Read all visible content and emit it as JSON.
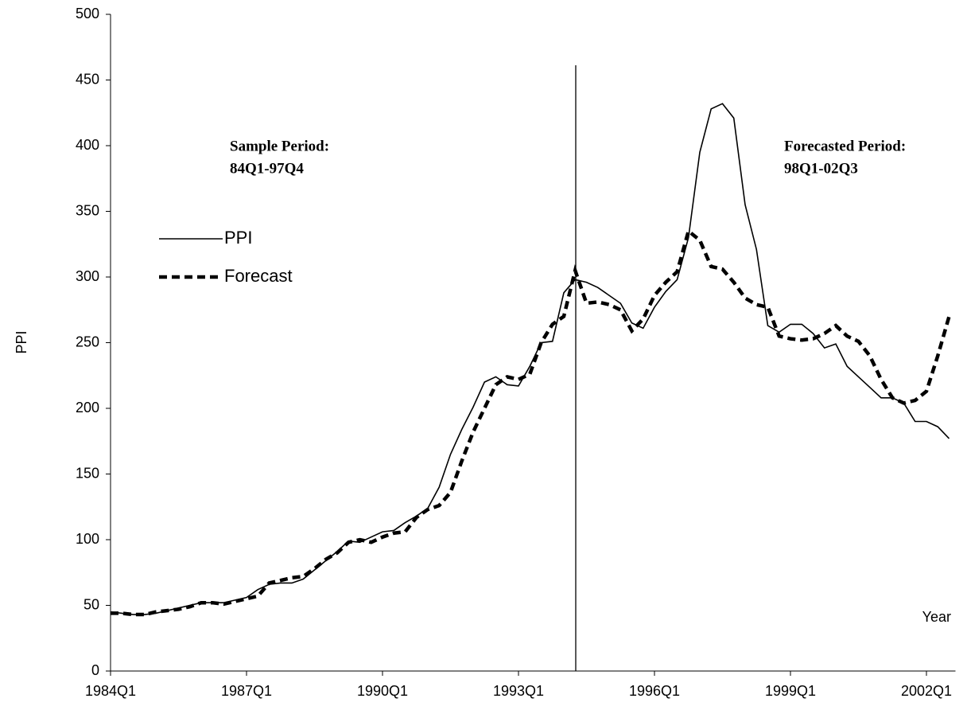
{
  "chart_data": {
    "type": "line",
    "y_label": "PPI",
    "x_label": "Year",
    "annotations": [
      "Sample Period:",
      "84Q1-97Q4",
      "Forecasted Period:",
      "98Q1-02Q3"
    ],
    "categories": [
      "1984Q1",
      null,
      null,
      null,
      null,
      null,
      null,
      null,
      null,
      null,
      null,
      null,
      "1987Q1",
      null,
      null,
      null,
      null,
      null,
      null,
      null,
      null,
      null,
      null,
      null,
      "1990Q1",
      null,
      null,
      null,
      null,
      null,
      null,
      null,
      null,
      null,
      null,
      null,
      "1993Q1",
      null,
      null,
      null,
      null,
      null,
      null,
      null,
      null,
      null,
      null,
      null,
      "1996Q1",
      null,
      null,
      null,
      null,
      null,
      null,
      null,
      null,
      null,
      null,
      null,
      "1999Q1",
      null,
      null,
      null,
      null,
      null,
      null,
      null,
      null,
      null,
      null,
      null,
      "2002Q1",
      null,
      null
    ],
    "series": [
      {
        "name": "PPI",
        "color": "#000000",
        "dash": false,
        "values": [
          45,
          44,
          43,
          43,
          44,
          46,
          48,
          50,
          52,
          52,
          52,
          54,
          56,
          62,
          66,
          67,
          67,
          70,
          77,
          84,
          91,
          99,
          98,
          102,
          106,
          107,
          113,
          118,
          124,
          140,
          165,
          184,
          201,
          220,
          224,
          218,
          217,
          232,
          250,
          251,
          288,
          298,
          296,
          292,
          286,
          280,
          265,
          261,
          277,
          289,
          298,
          330,
          395,
          428,
          432,
          421,
          355,
          321,
          263,
          258,
          264,
          264,
          257,
          246,
          249,
          232,
          224,
          216,
          208,
          208,
          204,
          190,
          190,
          186,
          177
        ]
      },
      {
        "name": "Forecast",
        "color": "#000000",
        "dash": true,
        "values": [
          44,
          44,
          43,
          43,
          45,
          46,
          47,
          49,
          52,
          52,
          51,
          53,
          55,
          57,
          67,
          69,
          71,
          72,
          78,
          85,
          90,
          98,
          100,
          98,
          102,
          105,
          106,
          117,
          123,
          126,
          136,
          160,
          182,
          200,
          218,
          224,
          222,
          226,
          250,
          264,
          270,
          305,
          280,
          281,
          279,
          275,
          259,
          268,
          286,
          296,
          304,
          335,
          328,
          308,
          306,
          296,
          284,
          279,
          277,
          255,
          253,
          252,
          253,
          257,
          263,
          255,
          251,
          240,
          222,
          208,
          204,
          206,
          213,
          240,
          270
        ]
      }
    ],
    "ylim": [
      0,
      500
    ],
    "yticks": [
      0,
      50,
      100,
      150,
      200,
      250,
      300,
      350,
      400,
      450,
      500
    ],
    "grid": false,
    "legend": "upper left"
  }
}
